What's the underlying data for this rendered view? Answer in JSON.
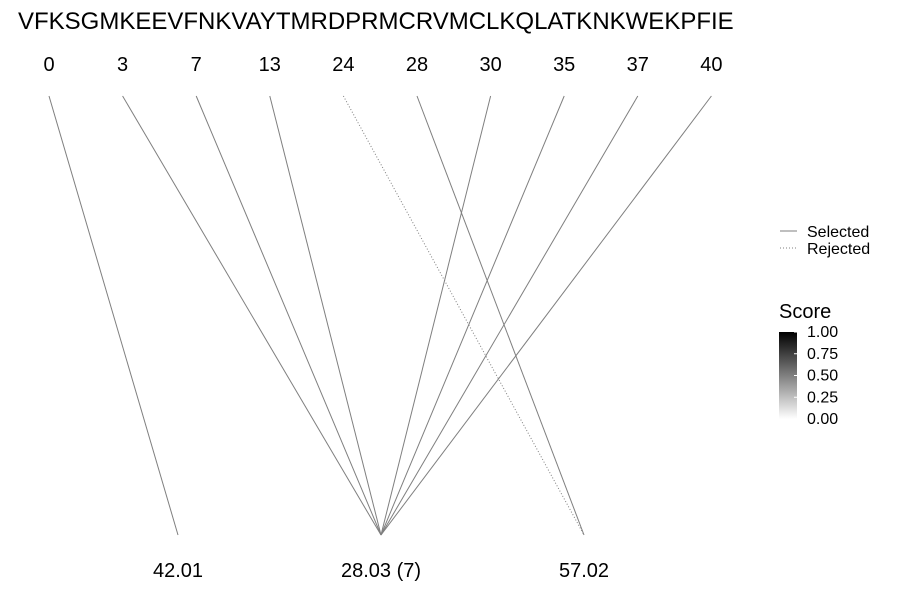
{
  "chart_data": {
    "type": "diagram",
    "sequence": "VFKSGMKEEVFNKVAYTMRDPRMCRVMCLKQLATKNKWEKPFIE",
    "positions": [
      "0",
      "3",
      "7",
      "13",
      "24",
      "28",
      "30",
      "35",
      "37",
      "40"
    ],
    "targets": [
      "42.01",
      "28.03 (7)",
      "57.02"
    ],
    "links": [
      {
        "from": "0",
        "to": "42.01",
        "status": "selected"
      },
      {
        "from": "3",
        "to": "28.03 (7)",
        "status": "selected"
      },
      {
        "from": "7",
        "to": "28.03 (7)",
        "status": "selected"
      },
      {
        "from": "13",
        "to": "28.03 (7)",
        "status": "selected"
      },
      {
        "from": "24",
        "to": "57.02",
        "status": "rejected"
      },
      {
        "from": "28",
        "to": "57.02",
        "status": "selected"
      },
      {
        "from": "30",
        "to": "28.03 (7)",
        "status": "selected"
      },
      {
        "from": "35",
        "to": "28.03 (7)",
        "status": "selected"
      },
      {
        "from": "37",
        "to": "28.03 (7)",
        "status": "selected"
      },
      {
        "from": "40",
        "to": "28.03 (7)",
        "status": "selected"
      }
    ],
    "legend": {
      "line_types": [
        {
          "label": "Selected",
          "style": "solid"
        },
        {
          "label": "Rejected",
          "style": "dotted"
        }
      ],
      "score_title": "Score",
      "score_ticks": [
        "1.00",
        "0.75",
        "0.50",
        "0.25",
        "0.00"
      ],
      "score_range": [
        0,
        1
      ],
      "score_colors": {
        "high": "#000000",
        "low": "#ffffff"
      }
    },
    "line_color": "#7f7f7f"
  }
}
